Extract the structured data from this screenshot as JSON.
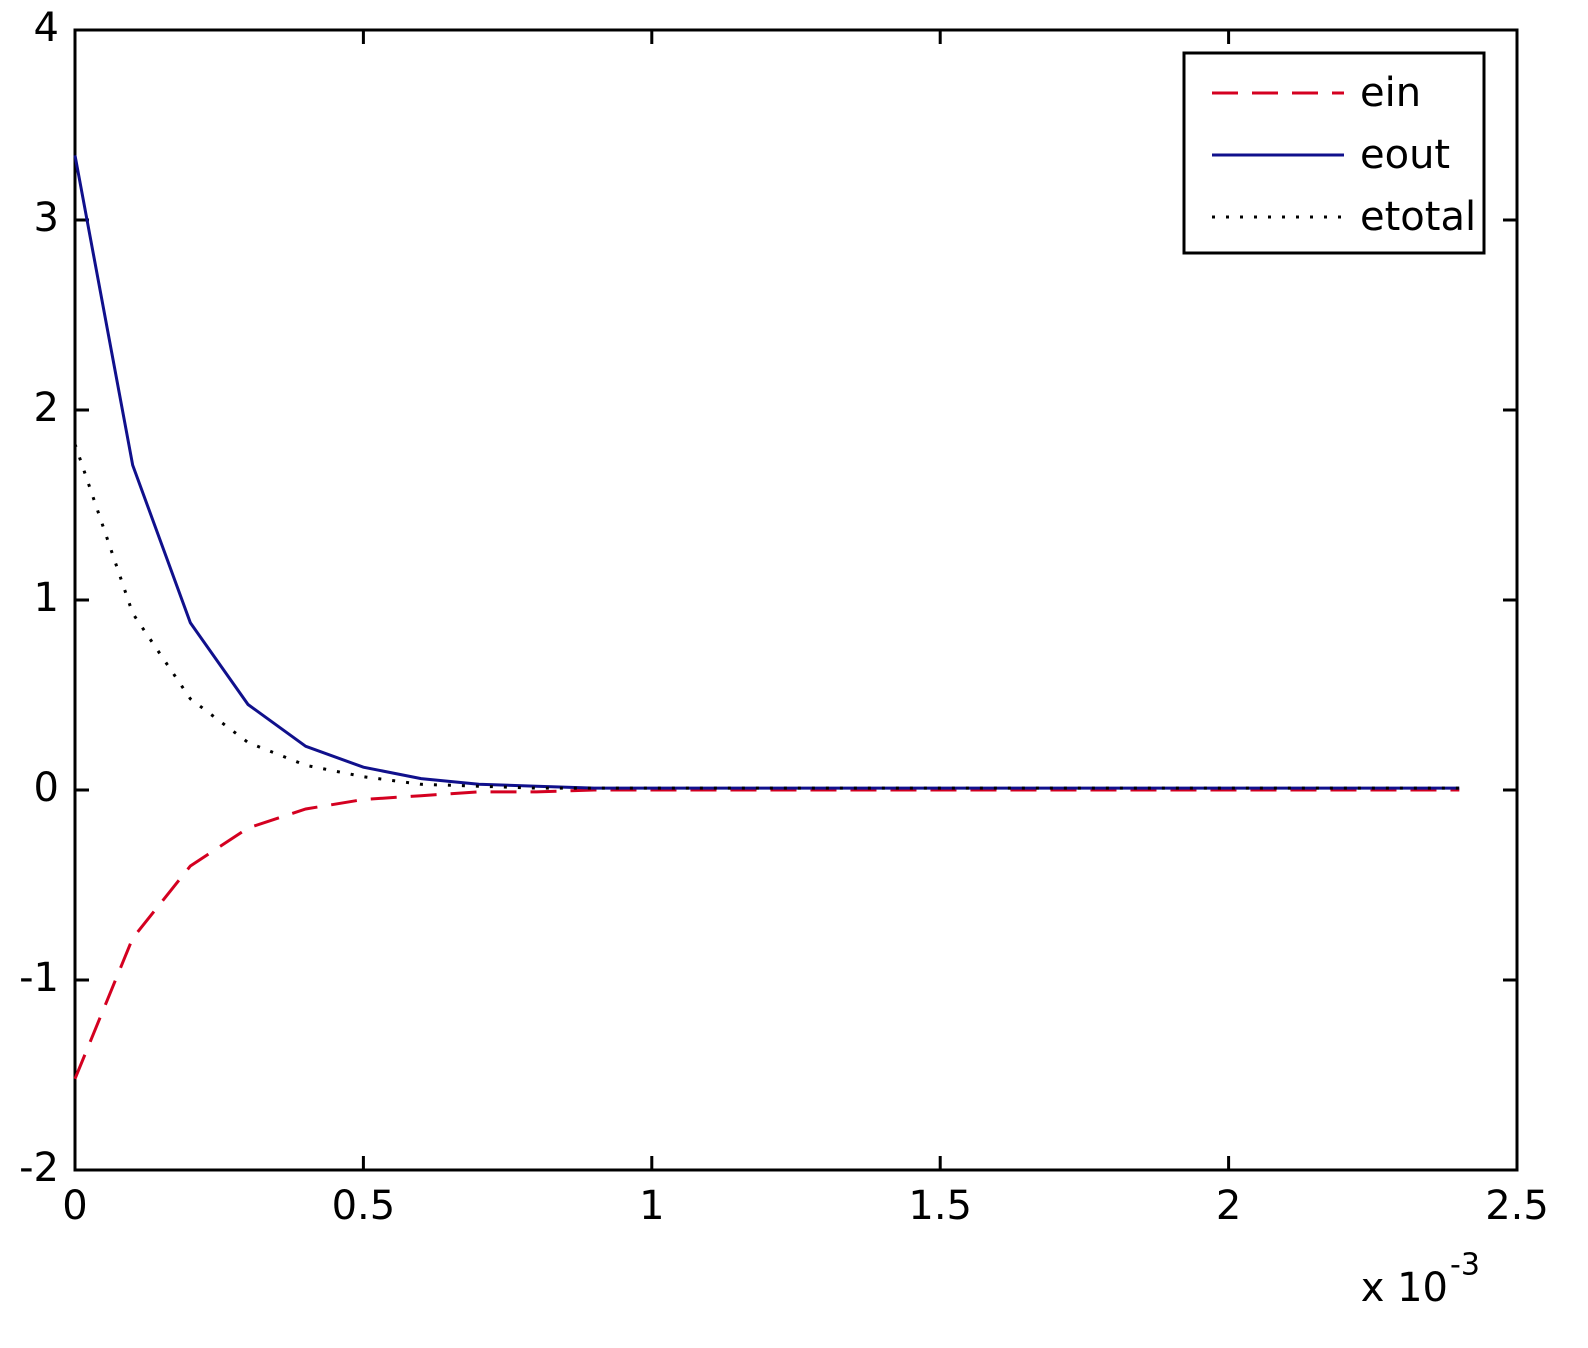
{
  "chart_data": {
    "type": "line",
    "x": [
      0,
      0.1,
      0.2,
      0.3,
      0.4,
      0.5,
      0.6,
      0.7,
      0.8,
      0.9,
      1.0,
      1.1,
      1.2,
      1.3,
      1.4,
      1.5,
      1.6,
      1.7,
      1.8,
      1.9,
      2.0,
      2.1,
      2.2,
      2.3,
      2.4
    ],
    "series": [
      {
        "name": "ein",
        "color": "#d40020",
        "linestyle": "dashed",
        "values": [
          -1.52,
          -0.78,
          -0.4,
          -0.2,
          -0.1,
          -0.05,
          -0.03,
          -0.01,
          -0.01,
          0,
          0,
          0,
          0,
          0,
          0,
          0,
          0,
          0,
          0,
          0,
          0,
          0,
          0,
          0,
          0
        ]
      },
      {
        "name": "eout",
        "color": "#10108c",
        "linestyle": "solid",
        "values": [
          3.34,
          1.71,
          0.88,
          0.45,
          0.23,
          0.12,
          0.06,
          0.03,
          0.02,
          0.01,
          0.01,
          0.01,
          0.01,
          0.01,
          0.01,
          0.01,
          0.01,
          0.01,
          0.01,
          0.01,
          0.01,
          0.01,
          0.01,
          0.01,
          0.01
        ]
      },
      {
        "name": "etotal",
        "color": "#000000",
        "linestyle": "dotted",
        "values": [
          1.82,
          0.93,
          0.48,
          0.25,
          0.13,
          0.07,
          0.03,
          0.02,
          0.01,
          0.01,
          0.01,
          0.01,
          0.01,
          0.01,
          0.01,
          0.01,
          0.01,
          0.01,
          0.01,
          0.01,
          0.01,
          0.01,
          0.01,
          0.01,
          0.01
        ]
      }
    ],
    "xlim": [
      0,
      2.5
    ],
    "xticks": [
      0,
      0.5,
      1,
      1.5,
      2,
      2.5
    ],
    "ylim": [
      -2,
      4
    ],
    "yticks": [
      -2,
      -1,
      0,
      1,
      2,
      3,
      4
    ],
    "x_scale_label": "x 10",
    "x_scale_exponent": "-3",
    "grid": false,
    "legend": "top-right"
  }
}
